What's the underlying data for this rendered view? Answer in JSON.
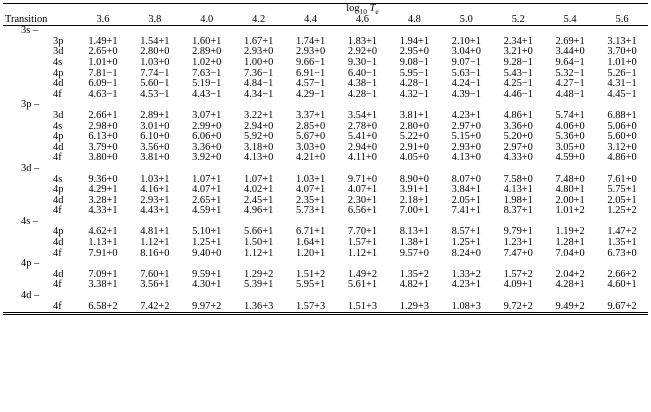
{
  "header": {
    "first_col": "Transition",
    "span": {
      "log": "log",
      "base": "10",
      "var": "T",
      "sub": "e"
    },
    "columns": [
      "3.6",
      "3.8",
      "4.0",
      "4.2",
      "4.4",
      "4.6",
      "4.8",
      "5.0",
      "5.2",
      "5.4",
      "5.6"
    ]
  },
  "groups": [
    {
      "label": "3s –",
      "rows": [
        {
          "label": "3p",
          "values": [
            "1.49+1",
            "1.54+1",
            "1.60+1",
            "1.67+1",
            "1.74+1",
            "1.83+1",
            "1.94+1",
            "2.10+1",
            "2.34+1",
            "2.69+1",
            "3.13+1"
          ]
        },
        {
          "label": "3d",
          "values": [
            "2.65+0",
            "2.80+0",
            "2.89+0",
            "2.93+0",
            "2.93+0",
            "2.92+0",
            "2.95+0",
            "3.04+0",
            "3.21+0",
            "3.44+0",
            "3.70+0"
          ]
        },
        {
          "label": "4s",
          "values": [
            "1.01+0",
            "1.03+0",
            "1.02+0",
            "1.00+0",
            "9.66−1",
            "9.30−1",
            "9.08−1",
            "9.07−1",
            "9.28−1",
            "9.64−1",
            "1.01+0"
          ]
        },
        {
          "label": "4p",
          "values": [
            "7.81−1",
            "7.74−1",
            "7.63−1",
            "7.36−1",
            "6.91−1",
            "6.40−1",
            "5.95−1",
            "5.63−1",
            "5.43−1",
            "5.32−1",
            "5.26−1"
          ]
        },
        {
          "label": "4d",
          "values": [
            "6.09−1",
            "5.60−1",
            "5.19−1",
            "4.84−1",
            "4.57−1",
            "4.38−1",
            "4.28−1",
            "4.24−1",
            "4.25−1",
            "4.27−1",
            "4.31−1"
          ]
        },
        {
          "label": "4f",
          "values": [
            "4.63−1",
            "4.53−1",
            "4.43−1",
            "4.34−1",
            "4.29−1",
            "4.28−1",
            "4.32−1",
            "4.39−1",
            "4.46−1",
            "4.48−1",
            "4.45−1"
          ]
        }
      ]
    },
    {
      "label": "3p –",
      "rows": [
        {
          "label": "3d",
          "values": [
            "2.66+1",
            "2.89+1",
            "3.07+1",
            "3.22+1",
            "3.37+1",
            "3.54+1",
            "3.81+1",
            "4.23+1",
            "4.86+1",
            "5.74+1",
            "6.88+1"
          ]
        },
        {
          "label": "4s",
          "values": [
            "2.98+0",
            "3.01+0",
            "2.99+0",
            "2.94+0",
            "2.85+0",
            "2.78+0",
            "2.80+0",
            "2.97+0",
            "3.36+0",
            "4.06+0",
            "5.06+0"
          ]
        },
        {
          "label": "4p",
          "values": [
            "6.13+0",
            "6.10+0",
            "6.06+0",
            "5.92+0",
            "5.67+0",
            "5.41+0",
            "5.22+0",
            "5.15+0",
            "5.20+0",
            "5.36+0",
            "5.60+0"
          ]
        },
        {
          "label": "4d",
          "values": [
            "3.79+0",
            "3.56+0",
            "3.36+0",
            "3.18+0",
            "3.03+0",
            "2.94+0",
            "2.91+0",
            "2.93+0",
            "2.97+0",
            "3.05+0",
            "3.12+0"
          ]
        },
        {
          "label": "4f",
          "values": [
            "3.80+0",
            "3.81+0",
            "3.92+0",
            "4.13+0",
            "4.21+0",
            "4.11+0",
            "4.05+0",
            "4.13+0",
            "4.33+0",
            "4.59+0",
            "4.86+0"
          ]
        }
      ]
    },
    {
      "label": "3d –",
      "rows": [
        {
          "label": "4s",
          "values": [
            "9.36+0",
            "1.03+1",
            "1.07+1",
            "1.07+1",
            "1.03+1",
            "9.71+0",
            "8.90+0",
            "8.07+0",
            "7.58+0",
            "7.48+0",
            "7.61+0"
          ]
        },
        {
          "label": "4p",
          "values": [
            "4.29+1",
            "4.16+1",
            "4.07+1",
            "4.02+1",
            "4.07+1",
            "4.07+1",
            "3.91+1",
            "3.84+1",
            "4.13+1",
            "4.80+1",
            "5.75+1"
          ]
        },
        {
          "label": "4d",
          "values": [
            "3.28+1",
            "2.93+1",
            "2.65+1",
            "2.45+1",
            "2.35+1",
            "2.30+1",
            "2.18+1",
            "2.05+1",
            "1.98+1",
            "2.00+1",
            "2.05+1"
          ]
        },
        {
          "label": "4f",
          "values": [
            "4.33+1",
            "4.43+1",
            "4.59+1",
            "4.96+1",
            "5.73+1",
            "6.56+1",
            "7.00+1",
            "7.41+1",
            "8.37+1",
            "1.01+2",
            "1.25+2"
          ]
        }
      ]
    },
    {
      "label": "4s –",
      "rows": [
        {
          "label": "4p",
          "values": [
            "4.62+1",
            "4.81+1",
            "5.10+1",
            "5.66+1",
            "6.71+1",
            "7.70+1",
            "8.13+1",
            "8.57+1",
            "9.79+1",
            "1.19+2",
            "1.47+2"
          ]
        },
        {
          "label": "4d",
          "values": [
            "1.13+1",
            "1.12+1",
            "1.25+1",
            "1.50+1",
            "1.64+1",
            "1.57+1",
            "1.38+1",
            "1.25+1",
            "1.23+1",
            "1.28+1",
            "1.35+1"
          ]
        },
        {
          "label": "4f",
          "values": [
            "7.91+0",
            "8.16+0",
            "9.40+0",
            "1.12+1",
            "1.20+1",
            "1.12+1",
            "9.57+0",
            "8.24+0",
            "7.47+0",
            "7.04+0",
            "6.73+0"
          ]
        }
      ]
    },
    {
      "label": "4p –",
      "rows": [
        {
          "label": "4d",
          "values": [
            "7.09+1",
            "7.60+1",
            "9.59+1",
            "1.29+2",
            "1.51+2",
            "1.49+2",
            "1.35+2",
            "1.33+2",
            "1.57+2",
            "2.04+2",
            "2.66+2"
          ]
        },
        {
          "label": "4f",
          "values": [
            "3.38+1",
            "3.56+1",
            "4.30+1",
            "5.39+1",
            "5.95+1",
            "5.61+1",
            "4.82+1",
            "4.23+1",
            "4.09+1",
            "4.28+1",
            "4.60+1"
          ]
        }
      ]
    },
    {
      "label": "4d –",
      "rows": [
        {
          "label": "4f",
          "values": [
            "6.58+2",
            "7.42+2",
            "9.97+2",
            "1.36+3",
            "1.57+3",
            "1.51+3",
            "1.29+3",
            "1.08+3",
            "9.72+2",
            "9.49+2",
            "9.67+2"
          ]
        }
      ]
    }
  ]
}
